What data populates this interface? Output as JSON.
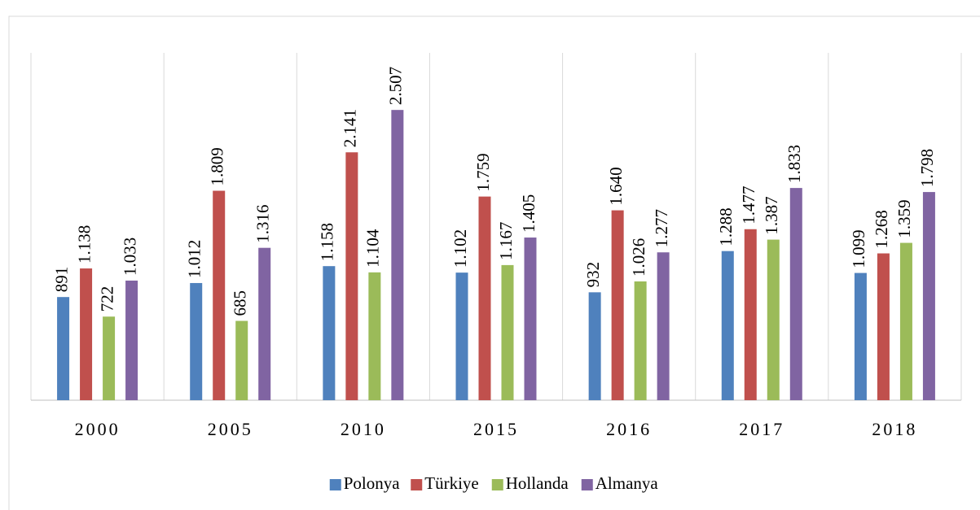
{
  "chart_data": {
    "type": "bar",
    "categories": [
      "2000",
      "2005",
      "2010",
      "2015",
      "2016",
      "2017",
      "2018"
    ],
    "series": [
      {
        "name": "Polonya",
        "color": "#4f81bd",
        "values": [
          891,
          1012,
          1158,
          1102,
          932,
          1288,
          1099
        ],
        "value_labels": [
          "891",
          "1.012",
          "1.158",
          "1.102",
          "932",
          "1.288",
          "1.099"
        ]
      },
      {
        "name": "Türkiye",
        "color": "#c0504d",
        "values": [
          1138,
          1809,
          2141,
          1759,
          1640,
          1477,
          1268
        ],
        "value_labels": [
          "1.138",
          "1.809",
          "2.141",
          "1.759",
          "1.640",
          "1.477",
          "1.268"
        ]
      },
      {
        "name": "Hollanda",
        "color": "#9bbb59",
        "values": [
          722,
          685,
          1104,
          1167,
          1026,
          1387,
          1359
        ],
        "value_labels": [
          "722",
          "685",
          "1.104",
          "1.167",
          "1.026",
          "1.387",
          "1.359"
        ]
      },
      {
        "name": "Almanya",
        "color": "#8064a2",
        "values": [
          1033,
          1316,
          2507,
          1405,
          1277,
          1833,
          1798
        ],
        "value_labels": [
          "1.033",
          "1.316",
          "2.507",
          "1.405",
          "1.277",
          "1.833",
          "1.798"
        ]
      }
    ],
    "ylim": [
      0,
      3000
    ],
    "legend": "bottom"
  }
}
